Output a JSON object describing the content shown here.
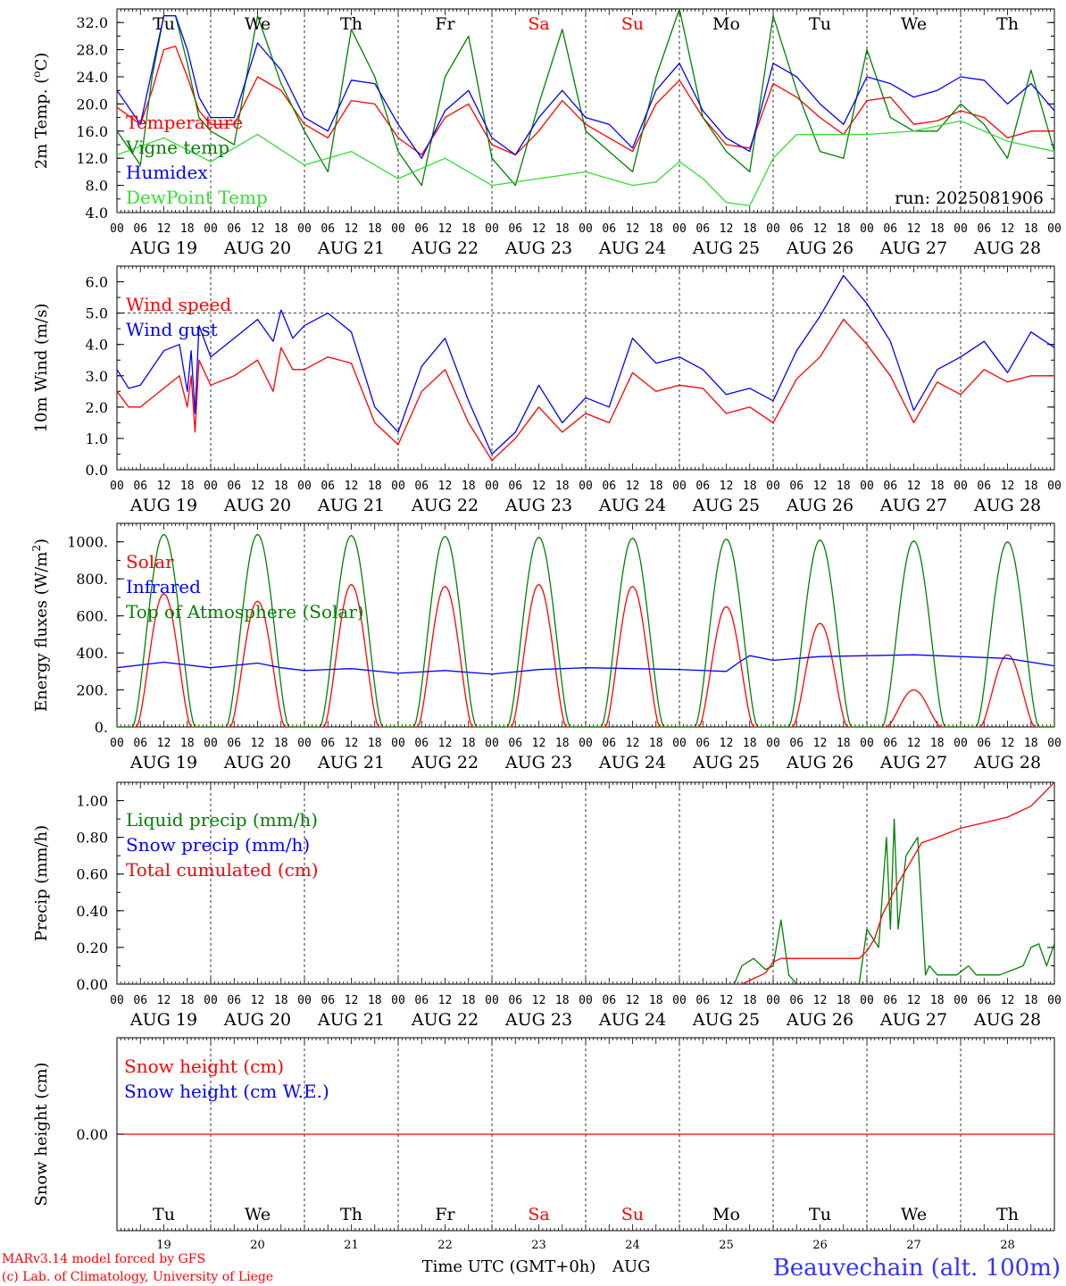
{
  "run_label": "run: 2025081906",
  "footer": {
    "model": "MARv3.14 model forced by GFS",
    "lab": "(c) Lab. of Climatology, University of Liege",
    "time_axis": "Time UTC (GMT+0h)",
    "month": "AUG",
    "station": "Beauvechain (alt. 100m)"
  },
  "days": {
    "weekdays": [
      "Tu",
      "We",
      "Th",
      "Fr",
      "Sa",
      "Su",
      "Mo",
      "Tu",
      "We",
      "Th"
    ],
    "weekend_index": [
      4,
      5
    ],
    "dates": [
      "AUG 19",
      "AUG 20",
      "AUG 21",
      "AUG 22",
      "AUG 23",
      "AUG 24",
      "AUG 25",
      "AUG 26",
      "AUG 27",
      "AUG 28"
    ],
    "day_numbers": [
      "19",
      "20",
      "21",
      "22",
      "23",
      "24",
      "25",
      "26",
      "27",
      "28"
    ],
    "hour_ticks": [
      "00",
      "06",
      "12",
      "18"
    ],
    "final_tick": "00"
  },
  "colors": {
    "red": "#ff0000",
    "green": "#008000",
    "blue": "#0000ff",
    "lightgreen": "#33dd33",
    "weekend": "#ff0000",
    "station": "#3333ff"
  },
  "chart_data": [
    {
      "type": "line",
      "ylabel": "2m Temp. (oC)",
      "ylim": [
        4,
        34
      ],
      "yticks": [
        4,
        8,
        12,
        16,
        20,
        24,
        28,
        32
      ],
      "ytick_labels": [
        "4.0",
        "8.0",
        "12.0",
        "16.0",
        "20.0",
        "24.0",
        "28.0",
        "32.0"
      ],
      "x_hours_range": [
        0,
        240
      ],
      "series": [
        {
          "name": "Temperature",
          "color": "red",
          "x": [
            0,
            6,
            9,
            12,
            15,
            18,
            21,
            24,
            30,
            36,
            42,
            48,
            54,
            60,
            66,
            72,
            78,
            84,
            90,
            96,
            102,
            108,
            114,
            120,
            126,
            132,
            138,
            144,
            150,
            156,
            162,
            168,
            174,
            180,
            186,
            192,
            198,
            204,
            210,
            216,
            222,
            228,
            234,
            240
          ],
          "y": [
            19.5,
            17,
            22,
            28,
            28.5,
            24,
            19,
            17,
            17,
            24,
            22,
            17,
            15,
            20.5,
            20,
            15,
            12.5,
            18,
            20,
            14,
            12.5,
            16,
            20.5,
            17,
            15,
            13,
            20,
            23.5,
            18,
            14,
            13.5,
            23,
            21,
            18,
            15.5,
            20.5,
            21,
            17,
            17.5,
            19,
            18,
            15,
            16,
            16
          ]
        },
        {
          "name": "Vigne temp",
          "color": "green",
          "x": [
            0,
            6,
            9,
            12,
            15,
            18,
            21,
            24,
            30,
            36,
            42,
            48,
            54,
            60,
            66,
            72,
            78,
            84,
            90,
            96,
            102,
            108,
            114,
            120,
            126,
            132,
            138,
            144,
            150,
            156,
            162,
            168,
            174,
            180,
            186,
            192,
            198,
            204,
            210,
            216,
            222,
            228,
            234,
            240
          ],
          "y": [
            16,
            11,
            24,
            33,
            33,
            26,
            18,
            16,
            14,
            33,
            23,
            16,
            10,
            31,
            24,
            13,
            8,
            24,
            30,
            12,
            8,
            20,
            31,
            16,
            13,
            10,
            24,
            34,
            18,
            13,
            10,
            33,
            22,
            13,
            12,
            28,
            18,
            16,
            16,
            20,
            17,
            12,
            25,
            13
          ]
        },
        {
          "name": "Humidex",
          "color": "blue",
          "x": [
            0,
            6,
            9,
            12,
            15,
            18,
            21,
            24,
            30,
            36,
            42,
            48,
            54,
            60,
            66,
            72,
            78,
            84,
            90,
            96,
            102,
            108,
            114,
            120,
            126,
            132,
            138,
            144,
            150,
            156,
            162,
            168,
            174,
            180,
            186,
            192,
            198,
            204,
            210,
            216,
            222,
            228,
            234,
            240
          ],
          "y": [
            22,
            17,
            25,
            33,
            33,
            28,
            21,
            18,
            18,
            29,
            25,
            18,
            16,
            23.5,
            23,
            17,
            12,
            19,
            22,
            15,
            12.5,
            18,
            22,
            18,
            17,
            13.5,
            22,
            26,
            19,
            15,
            13,
            26,
            24,
            20,
            17,
            24,
            23,
            21,
            22,
            24,
            23.5,
            20,
            23,
            19
          ]
        },
        {
          "name": "DewPoint Temp",
          "color": "lightgreen",
          "x": [
            0,
            12,
            24,
            36,
            48,
            60,
            72,
            84,
            96,
            108,
            120,
            132,
            138,
            144,
            150,
            156,
            162,
            168,
            174,
            180,
            192,
            204,
            216,
            228,
            240
          ],
          "y": [
            12.5,
            15,
            11.5,
            15.5,
            11,
            13,
            9,
            12,
            8,
            9,
            10,
            8,
            8.5,
            11.5,
            9,
            5.5,
            5,
            12,
            15.5,
            15.5,
            15.5,
            16,
            17.5,
            14.5,
            13
          ]
        }
      ]
    },
    {
      "type": "line",
      "ylabel": "10m Wind (m/s)",
      "ylim": [
        0,
        6.5
      ],
      "yticks": [
        0,
        1,
        2,
        3,
        4,
        5,
        6
      ],
      "ytick_labels": [
        "0.0",
        "1.0",
        "2.0",
        "3.0",
        "4.0",
        "5.0",
        "6.0"
      ],
      "reference_line": 5.0,
      "x_hours_range": [
        0,
        240
      ],
      "series": [
        {
          "name": "Wind speed",
          "color": "red",
          "x": [
            0,
            3,
            6,
            12,
            16,
            18,
            19,
            20,
            21,
            24,
            30,
            36,
            40,
            42,
            45,
            48,
            54,
            60,
            66,
            72,
            78,
            84,
            90,
            96,
            102,
            108,
            114,
            120,
            126,
            132,
            138,
            144,
            150,
            156,
            162,
            168,
            174,
            180,
            186,
            192,
            198,
            204,
            210,
            216,
            222,
            228,
            234,
            240
          ],
          "y": [
            2.5,
            2,
            2,
            2.6,
            3,
            2,
            3,
            1.2,
            3.5,
            2.7,
            3,
            3.5,
            2.5,
            3.9,
            3.2,
            3.2,
            3.6,
            3.4,
            1.5,
            0.8,
            2.5,
            3.2,
            1.5,
            0.3,
            1,
            2,
            1.2,
            1.8,
            1.5,
            3.1,
            2.5,
            2.7,
            2.6,
            1.8,
            2,
            1.5,
            2.9,
            3.6,
            4.8,
            4,
            3,
            1.5,
            2.8,
            2.4,
            3.2,
            2.8,
            3,
            3
          ]
        },
        {
          "name": "Wind gust",
          "color": "blue",
          "x": [
            0,
            3,
            6,
            12,
            16,
            18,
            19,
            20,
            21,
            24,
            30,
            36,
            40,
            42,
            45,
            48,
            54,
            60,
            66,
            72,
            78,
            84,
            90,
            96,
            102,
            108,
            114,
            120,
            126,
            132,
            138,
            144,
            150,
            156,
            162,
            168,
            174,
            180,
            186,
            192,
            198,
            204,
            210,
            216,
            222,
            228,
            234,
            240
          ],
          "y": [
            3.2,
            2.6,
            2.7,
            3.8,
            4,
            2.5,
            3.8,
            1.8,
            4.6,
            3.6,
            4.2,
            4.8,
            4.1,
            5.1,
            4.2,
            4.6,
            5,
            4.4,
            2,
            1.2,
            3.3,
            4.2,
            2.2,
            0.5,
            1.2,
            2.7,
            1.5,
            2.3,
            2,
            4.2,
            3.4,
            3.6,
            3.2,
            2.4,
            2.6,
            2.2,
            3.8,
            4.9,
            6.2,
            5.3,
            4.1,
            1.9,
            3.2,
            3.6,
            4.1,
            3.1,
            4.4,
            3.9
          ]
        }
      ]
    },
    {
      "type": "line",
      "ylabel": "Energy fluxes (W/m2)",
      "ylim": [
        0,
        1100
      ],
      "yticks": [
        0,
        200,
        400,
        600,
        800,
        1000
      ],
      "ytick_labels": [
        "0.",
        "200.",
        "400.",
        "600.",
        "800.",
        "1000."
      ],
      "x_hours_range": [
        0,
        240
      ],
      "toa_peaks": [
        1040,
        1040,
        1035,
        1030,
        1025,
        1020,
        1015,
        1010,
        1005,
        1000
      ],
      "solar_peaks": [
        720,
        680,
        770,
        760,
        770,
        760,
        650,
        560,
        200,
        390
      ],
      "daylight_hours": [
        4,
        20
      ],
      "series": [
        {
          "name": "Solar",
          "color": "red"
        },
        {
          "name": "Infrared",
          "color": "blue",
          "x": [
            0,
            12,
            24,
            36,
            42,
            48,
            60,
            72,
            84,
            96,
            108,
            120,
            132,
            144,
            156,
            160,
            162,
            168,
            180,
            192,
            204,
            216,
            228,
            240
          ],
          "y": [
            320,
            350,
            320,
            345,
            320,
            305,
            315,
            290,
            305,
            285,
            310,
            320,
            315,
            310,
            300,
            360,
            385,
            360,
            380,
            385,
            390,
            380,
            370,
            330
          ]
        },
        {
          "name": "Top of Atmosphere (Solar)",
          "color": "green"
        }
      ]
    },
    {
      "type": "line",
      "ylabel": "Precip (mm/h)",
      "ylim": [
        0,
        1.1
      ],
      "yticks": [
        0,
        0.2,
        0.4,
        0.6,
        0.8,
        1.0
      ],
      "ytick_labels": [
        "0.00",
        "0.20",
        "0.40",
        "0.60",
        "0.80",
        "1.00"
      ],
      "x_hours_range": [
        0,
        240
      ],
      "series": [
        {
          "name": "Liquid precip (mm/h)",
          "color": "green",
          "x": [
            0,
            158,
            160,
            163,
            166,
            168,
            170,
            172,
            174,
            180,
            190,
            192,
            195,
            197,
            198,
            199,
            200,
            202,
            205,
            207,
            208,
            210,
            215,
            218,
            220,
            226,
            232,
            234,
            236,
            238,
            240
          ],
          "y": [
            0,
            0,
            0.1,
            0.14,
            0.08,
            0.1,
            0.35,
            0.05,
            0,
            0,
            0,
            0.3,
            0.2,
            0.8,
            0.3,
            0.9,
            0.3,
            0.7,
            0.8,
            0.05,
            0.1,
            0.05,
            0.05,
            0.1,
            0.05,
            0.05,
            0.1,
            0.2,
            0.22,
            0.1,
            0.22
          ]
        },
        {
          "name": "Snow precip (mm/h)",
          "color": "blue",
          "x": [
            0,
            240
          ],
          "y": [
            0,
            0
          ]
        },
        {
          "name": "Total cumulated (cm)",
          "color": "red",
          "x": [
            0,
            160,
            166,
            168,
            170,
            180,
            190,
            192,
            194,
            196,
            200,
            206,
            210,
            216,
            222,
            228,
            234,
            240
          ],
          "y": [
            0,
            0,
            0.06,
            0.12,
            0.14,
            0.14,
            0.14,
            0.18,
            0.25,
            0.38,
            0.55,
            0.77,
            0.8,
            0.85,
            0.88,
            0.91,
            0.97,
            1.1
          ]
        }
      ]
    },
    {
      "type": "line",
      "ylabel": "Snow height (cm)",
      "ytick_labels": [
        "0.00"
      ],
      "x_hours_range": [
        0,
        240
      ],
      "series": [
        {
          "name": "Snow height (cm)",
          "color": "red",
          "x": [
            0,
            240
          ],
          "y": [
            0,
            0
          ]
        },
        {
          "name": "Snow height (cm W.E.)",
          "color": "blue"
        }
      ]
    }
  ]
}
